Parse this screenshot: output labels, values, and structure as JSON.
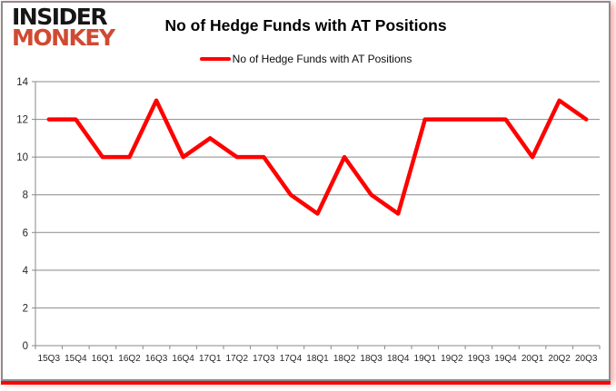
{
  "logo": {
    "line1": "INSIDER",
    "line2": "MONKEY"
  },
  "header": {
    "title": "No of Hedge Funds with AT Positions"
  },
  "legend": {
    "label": "No of Hedge Funds with AT Positions"
  },
  "chart_data": {
    "type": "line",
    "title": "No of Hedge Funds with AT Positions",
    "categories": [
      "15Q3",
      "15Q4",
      "16Q1",
      "16Q2",
      "16Q3",
      "16Q4",
      "17Q1",
      "17Q2",
      "17Q3",
      "17Q4",
      "18Q1",
      "18Q2",
      "18Q3",
      "18Q4",
      "19Q1",
      "19Q2",
      "19Q3",
      "19Q4",
      "20Q1",
      "20Q2",
      "20Q3"
    ],
    "series": [
      {
        "name": "No of Hedge Funds with AT Positions",
        "color": "#ff0000",
        "values": [
          12,
          12,
          10,
          10,
          13,
          10,
          11,
          10,
          10,
          8,
          7,
          10,
          8,
          7,
          12,
          12,
          12,
          12,
          10,
          13,
          12
        ]
      }
    ],
    "xlabel": "",
    "ylabel": "",
    "ylim": [
      0,
      14
    ],
    "ytick_step": 2,
    "grid": true,
    "legend_position": "top-center"
  },
  "colors": {
    "line_red": "#ff0000",
    "logo_black": "#161616",
    "logo_red": "#d04a31",
    "grid_gray": "#898989",
    "border_gray": "#8c8c8c",
    "bottom_bar_red": "#fa0505",
    "label_text": "#262626"
  }
}
